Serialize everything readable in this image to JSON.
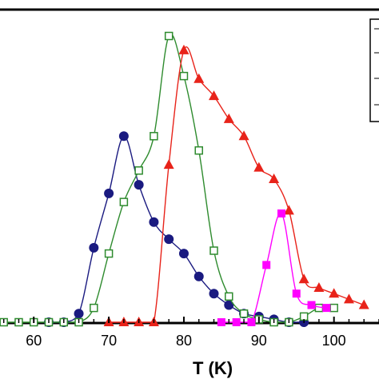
{
  "chart_data": {
    "type": "line",
    "title": "",
    "xlabel": "T (K)",
    "ylabel": "",
    "xlim": [
      55.5,
      106
    ],
    "ylim": [
      0,
      1
    ],
    "xticks": [
      60,
      70,
      80,
      90,
      100
    ],
    "grid": false,
    "legend": "top-right (partially visible, entries cropped)",
    "series": [
      {
        "color": "#1a1a80",
        "marker": "filled-circle",
        "x": [
          62,
          64,
          66,
          68,
          70,
          72,
          74,
          76,
          78,
          80,
          82,
          84,
          86,
          88,
          90,
          92,
          94,
          96
        ],
        "y": [
          0.0,
          0.0,
          0.03,
          0.26,
          0.45,
          0.65,
          0.48,
          0.35,
          0.29,
          0.24,
          0.16,
          0.1,
          0.06,
          0.03,
          0.02,
          0.01,
          0.0,
          0.0
        ]
      },
      {
        "color": "#2e8b2e",
        "marker": "open-square",
        "x": [
          56,
          58,
          60,
          62,
          64,
          66,
          68,
          70,
          72,
          74,
          76,
          78,
          80,
          82,
          84,
          86,
          88,
          90,
          92,
          94,
          96,
          98,
          100
        ],
        "y": [
          0.0,
          0.0,
          0.0,
          0.0,
          0.0,
          0.0,
          0.05,
          0.24,
          0.42,
          0.53,
          0.65,
          1.0,
          0.86,
          0.6,
          0.25,
          0.09,
          0.03,
          0.01,
          0.0,
          0.0,
          0.02,
          0.05,
          0.05
        ]
      },
      {
        "color": "#e8231a",
        "marker": "filled-triangle",
        "x": [
          70,
          72,
          74,
          76,
          78,
          80,
          82,
          84,
          86,
          88,
          90,
          92,
          94,
          96,
          98,
          100,
          102,
          104
        ],
        "y": [
          0.0,
          0.0,
          0.0,
          0.0,
          0.55,
          0.95,
          0.85,
          0.79,
          0.71,
          0.65,
          0.54,
          0.5,
          0.39,
          0.15,
          0.12,
          0.1,
          0.08,
          0.06
        ]
      },
      {
        "color": "#ff00ff",
        "marker": "filled-square",
        "x": [
          85,
          87,
          89,
          91,
          93,
          95,
          97,
          99
        ],
        "y": [
          0.0,
          0.0,
          0.0,
          0.2,
          0.38,
          0.1,
          0.06,
          0.05
        ]
      }
    ]
  }
}
